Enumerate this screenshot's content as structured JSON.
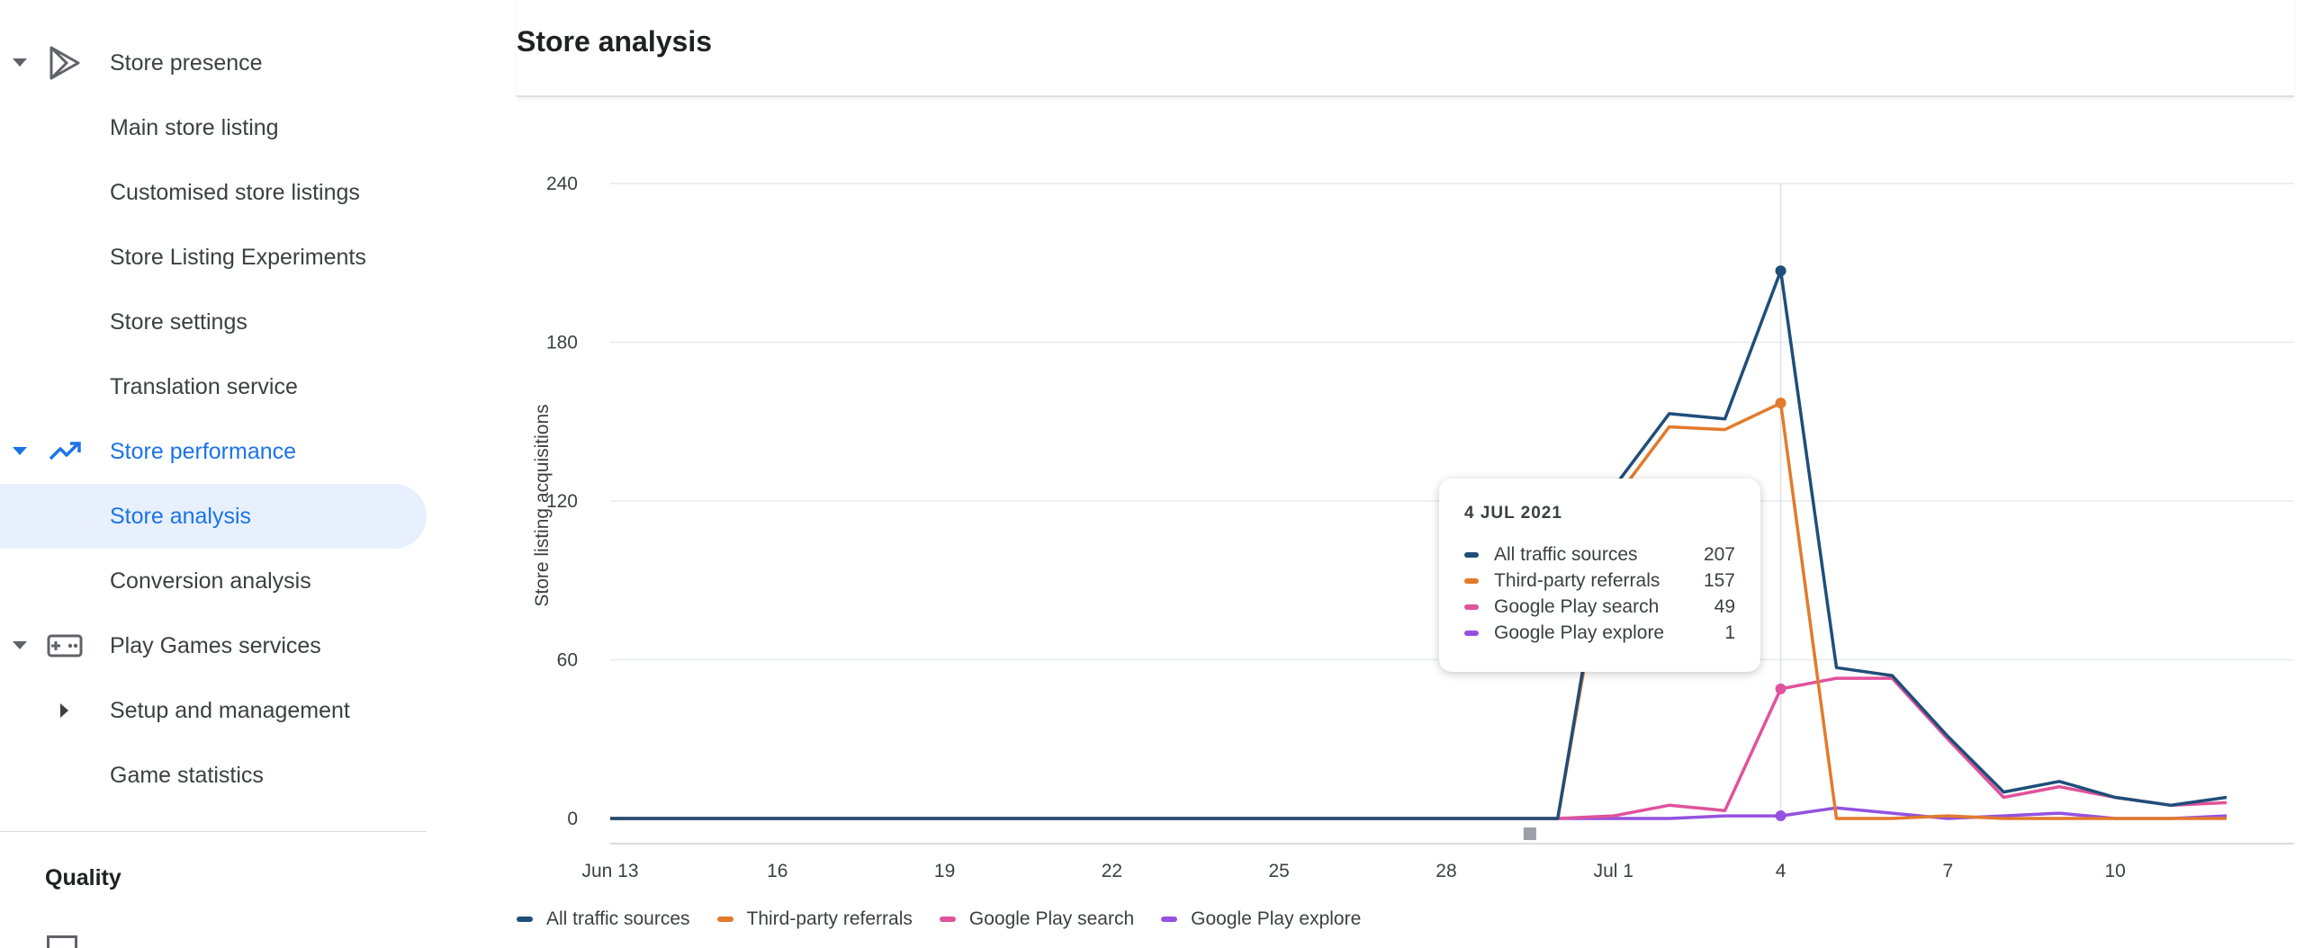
{
  "sidebar": {
    "store_presence": "Store presence",
    "items_presence": [
      "Main store listing",
      "Customised store listings",
      "Store Listing Experiments",
      "Store settings",
      "Translation service"
    ],
    "store_performance": "Store performance",
    "items_performance": [
      "Store analysis",
      "Conversion analysis"
    ],
    "play_games": "Play Games services",
    "items_games": [
      "Setup and management",
      "Game statistics"
    ],
    "quality": "Quality"
  },
  "page": {
    "title": "Store analysis"
  },
  "tooltip": {
    "date": "4 JUL 2021",
    "rows": [
      {
        "name": "All traffic sources",
        "value": "207"
      },
      {
        "name": "Third-party referrals",
        "value": "157"
      },
      {
        "name": "Google Play search",
        "value": "49"
      },
      {
        "name": "Google Play explore",
        "value": "1"
      }
    ]
  },
  "colors": {
    "all": "#1f4e79",
    "third": "#e37a2c",
    "search": "#e0529c",
    "explore": "#9451e0",
    "active_bg": "#e8f0fe",
    "accent": "#1a73e8"
  },
  "chart_data": {
    "type": "line",
    "ylabel": "Store listing acquisitions",
    "xlabel": "",
    "ylim": [
      0,
      240
    ],
    "yticks": [
      0,
      60,
      120,
      180,
      240
    ],
    "x_ticks": [
      "Jun 13",
      "16",
      "19",
      "22",
      "25",
      "28",
      "Jul 1",
      "4",
      "7",
      "10"
    ],
    "x": [
      "Jun 13",
      "Jun 14",
      "Jun 15",
      "Jun 16",
      "Jun 17",
      "Jun 18",
      "Jun 19",
      "Jun 20",
      "Jun 21",
      "Jun 22",
      "Jun 23",
      "Jun 24",
      "Jun 25",
      "Jun 26",
      "Jun 27",
      "Jun 28",
      "Jun 29",
      "Jun 30",
      "Jul 1",
      "Jul 2",
      "Jul 3",
      "Jul 4",
      "Jul 5",
      "Jul 6",
      "Jul 7",
      "Jul 8",
      "Jul 9",
      "Jul 10",
      "Jul 11",
      "Jul 12"
    ],
    "series": [
      {
        "name": "All traffic sources",
        "color": "#1f4e79",
        "values": [
          0,
          0,
          0,
          0,
          0,
          0,
          0,
          0,
          0,
          0,
          0,
          0,
          0,
          0,
          0,
          0,
          0,
          0,
          125,
          153,
          151,
          207,
          57,
          54,
          31,
          10,
          14,
          8,
          5,
          8
        ]
      },
      {
        "name": "Third-party referrals",
        "color": "#e37a2c",
        "values": [
          0,
          0,
          0,
          0,
          0,
          0,
          0,
          0,
          0,
          0,
          0,
          0,
          0,
          0,
          0,
          0,
          0,
          0,
          120,
          148,
          147,
          157,
          0,
          0,
          1,
          0,
          0,
          0,
          0,
          0
        ]
      },
      {
        "name": "Google Play search",
        "color": "#e0529c",
        "values": [
          0,
          0,
          0,
          0,
          0,
          0,
          0,
          0,
          0,
          0,
          0,
          0,
          0,
          0,
          0,
          0,
          0,
          0,
          1,
          5,
          3,
          49,
          53,
          53,
          30,
          8,
          12,
          8,
          5,
          6
        ]
      },
      {
        "name": "Google Play explore",
        "color": "#9451e0",
        "values": [
          0,
          0,
          0,
          0,
          0,
          0,
          0,
          0,
          0,
          0,
          0,
          0,
          0,
          0,
          0,
          0,
          0,
          0,
          0,
          0,
          1,
          1,
          4,
          2,
          0,
          1,
          2,
          0,
          0,
          1
        ]
      }
    ],
    "grid": true,
    "legend": "bottom",
    "highlight_index": 21
  }
}
